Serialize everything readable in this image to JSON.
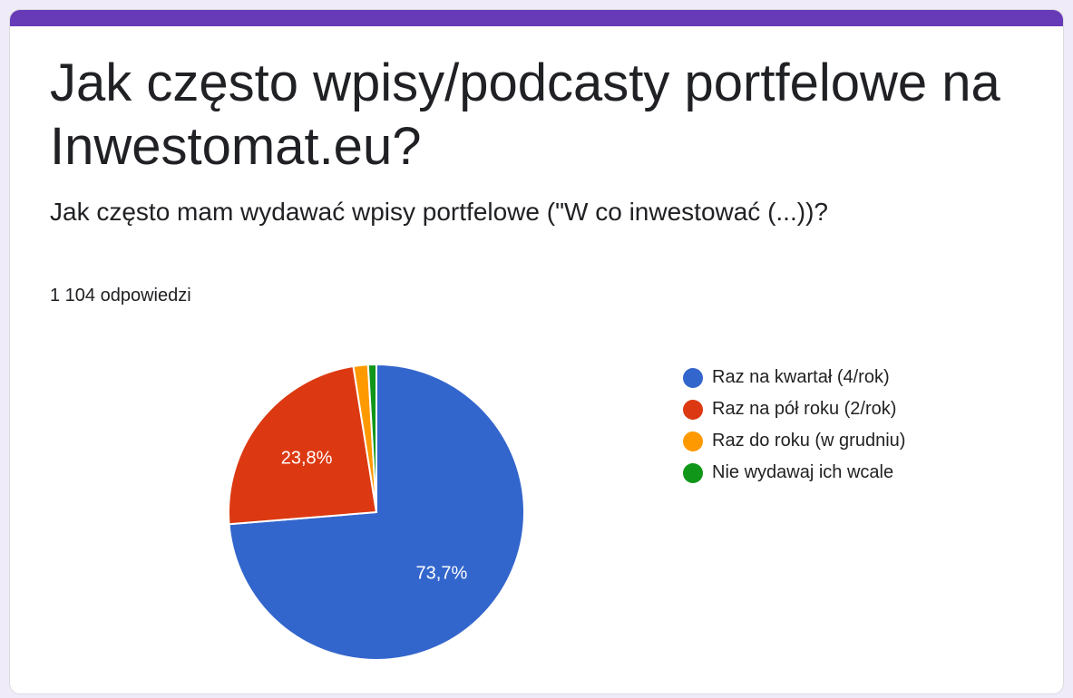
{
  "form": {
    "title": "Jak często wpisy/podcasty portfelowe na Inwestomat.eu?",
    "question": "Jak często mam wydawać wpisy portfelowe (\"W co inwestować (...))?",
    "response_count": "1 104 odpowiedzi"
  },
  "colors": {
    "accent": "#673ab7",
    "background": "#f0ebf8"
  },
  "chart_data": {
    "type": "pie",
    "title": "",
    "legend_position": "right",
    "categories": [
      "Raz na kwartał (4/rok)",
      "Raz na pół roku (2/rok)",
      "Raz do roku (w grudniu)",
      "Nie wydawaj ich wcale"
    ],
    "values": [
      73.7,
      23.8,
      1.6,
      0.9
    ],
    "data_labels": [
      "73,7%",
      "23,8%",
      "",
      ""
    ],
    "colors": [
      "#3366cc",
      "#dc3912",
      "#ff9900",
      "#109618"
    ]
  }
}
